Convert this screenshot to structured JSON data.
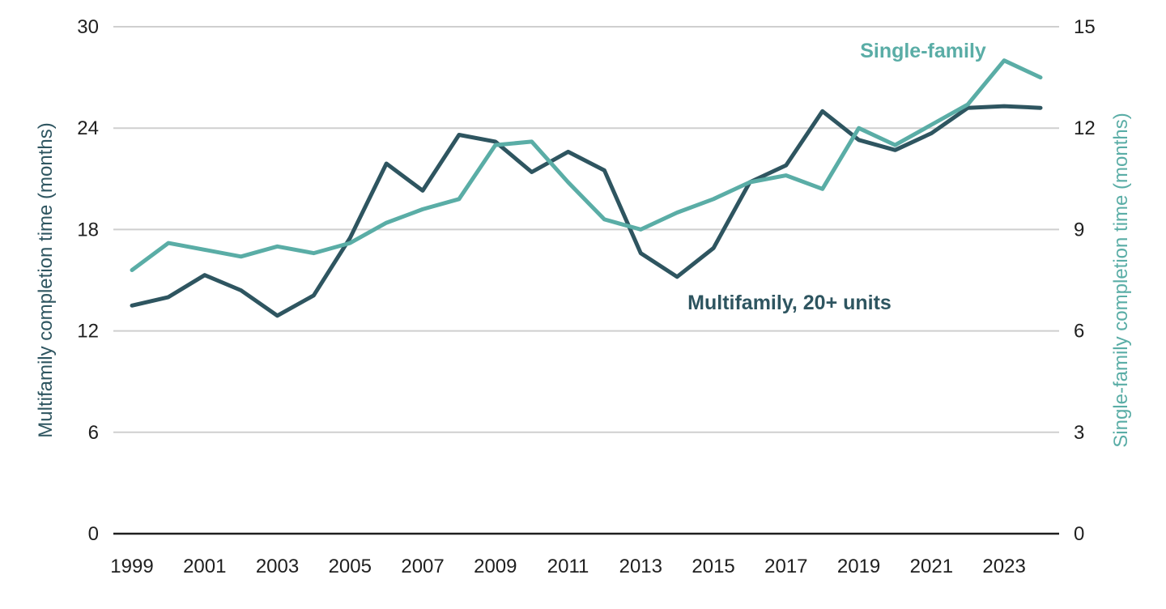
{
  "chart_data": {
    "type": "line",
    "title": "",
    "xlabel": "",
    "ylabel": "Multifamily completion time (months)",
    "ylabel_right": "Single-family completion time (months)",
    "x": [
      1999,
      2000,
      2001,
      2002,
      2003,
      2004,
      2005,
      2006,
      2007,
      2008,
      2009,
      2010,
      2011,
      2012,
      2013,
      2014,
      2015,
      2016,
      2017,
      2018,
      2019,
      2020,
      2021,
      2022,
      2023,
      2024
    ],
    "x_ticks": [
      "1999",
      "2001",
      "2003",
      "2005",
      "2007",
      "2009",
      "2011",
      "2013",
      "2015",
      "2017",
      "2019",
      "2021",
      "2023"
    ],
    "ylim": [
      0,
      30
    ],
    "y_ticks": [
      "0",
      "6",
      "12",
      "18",
      "24",
      "30"
    ],
    "ylim_right": [
      0,
      15
    ],
    "y_ticks_right": [
      "0",
      "3",
      "6",
      "9",
      "12",
      "15"
    ],
    "grid": true,
    "series": [
      {
        "name": "Multifamily, 20+ units",
        "axis": "left",
        "color": "#2e5560",
        "values": [
          13.5,
          14.0,
          15.3,
          14.4,
          12.9,
          14.1,
          17.5,
          21.9,
          20.3,
          23.6,
          23.2,
          21.4,
          22.6,
          21.5,
          16.6,
          15.2,
          16.9,
          20.8,
          21.8,
          25.0,
          23.3,
          22.7,
          23.7,
          25.2,
          25.3,
          25.2
        ]
      },
      {
        "name": "Single-family",
        "axis": "right",
        "color": "#5aada6",
        "values": [
          7.8,
          8.6,
          8.4,
          8.2,
          8.5,
          8.3,
          8.6,
          9.2,
          9.6,
          9.9,
          11.5,
          11.6,
          10.4,
          9.3,
          9.0,
          9.5,
          9.9,
          10.4,
          10.6,
          10.2,
          12.0,
          11.5,
          12.1,
          12.7,
          14.0,
          13.5
        ]
      }
    ]
  }
}
